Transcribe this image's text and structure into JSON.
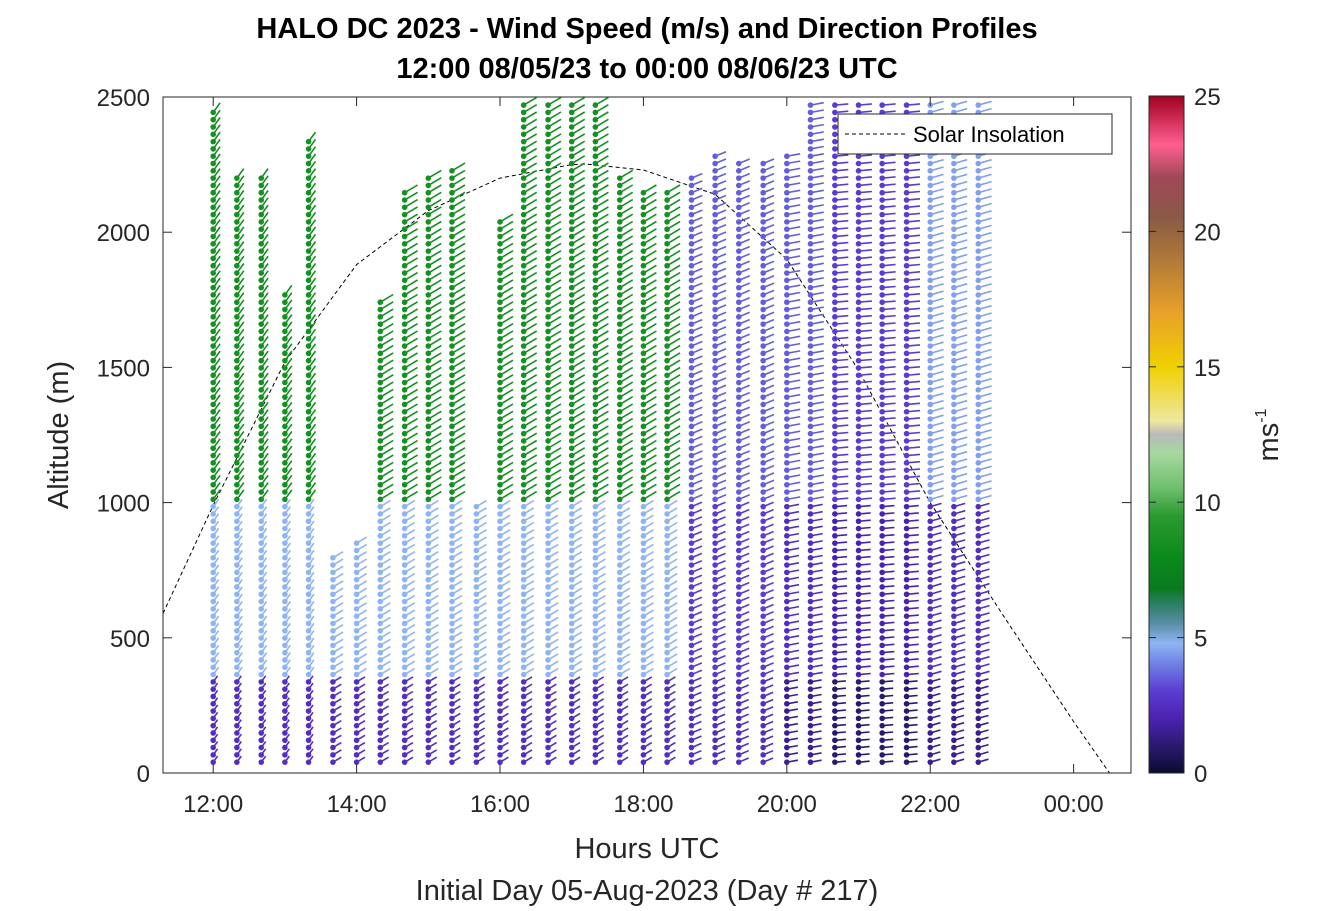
{
  "chart_data": {
    "type": "scatter",
    "title": "HALO DC 2023 - Wind Speed (m/s) and Direction Profiles",
    "subtitle": "12:00 08/05/23 to 00:00 08/06/23  UTC",
    "xlabel": "Hours UTC",
    "xlabel_sub": "Initial Day 05-Aug-2023 (Day # 217)",
    "ylabel": "Altitude (m)",
    "xlim": [
      11.3,
      24.8
    ],
    "ylim": [
      0,
      2500
    ],
    "xticks": [
      12,
      14,
      16,
      18,
      20,
      22,
      24
    ],
    "xtick_labels": [
      "12:00",
      "14:00",
      "16:00",
      "18:00",
      "20:00",
      "22:00",
      "00:00"
    ],
    "yticks": [
      0,
      500,
      1000,
      1500,
      2000,
      2500
    ],
    "ytick_labels": [
      "0",
      "500",
      "1000",
      "1500",
      "2000",
      "2500"
    ],
    "colorbar": {
      "label": "ms",
      "label_exponent": "-1",
      "range": [
        0,
        25
      ],
      "ticks": [
        0,
        5,
        10,
        15,
        20,
        25
      ],
      "tick_labels": [
        "0",
        "5",
        "10",
        "15",
        "20",
        "25"
      ],
      "stops": [
        [
          0,
          "#0b0b2e"
        ],
        [
          1,
          "#2a1a6e"
        ],
        [
          2,
          "#4b22b0"
        ],
        [
          3,
          "#5a3cd0"
        ],
        [
          4,
          "#6f7fe6"
        ],
        [
          4.8,
          "#8fb4f2"
        ],
        [
          5.5,
          "#5a8fa8"
        ],
        [
          6.2,
          "#2f7f6a"
        ],
        [
          6.8,
          "#0a7a20"
        ],
        [
          8,
          "#0b8a1c"
        ],
        [
          9.5,
          "#2b9a30"
        ],
        [
          10.5,
          "#6cbf6c"
        ],
        [
          11.8,
          "#a6d8a0"
        ],
        [
          12.5,
          "#b9b9b9"
        ],
        [
          13,
          "#eee8a0"
        ],
        [
          15,
          "#f0d000"
        ],
        [
          17,
          "#e8a12a"
        ],
        [
          19,
          "#b07838"
        ],
        [
          20.5,
          "#8a5a46"
        ],
        [
          22,
          "#a04858"
        ],
        [
          23.2,
          "#ff5f8f"
        ],
        [
          25,
          "#a00020"
        ]
      ]
    },
    "legend": {
      "label": "Solar Insolation",
      "position": "top-right"
    },
    "solar_insolation": {
      "x": [
        11.3,
        12.0,
        13.0,
        14.0,
        15.0,
        16.0,
        17.0,
        17.2,
        18.0,
        19.0,
        20.0,
        21.0,
        22.0,
        23.0,
        24.0,
        24.5
      ],
      "y": [
        590,
        990,
        1520,
        1880,
        2080,
        2200,
        2250,
        2252,
        2230,
        2140,
        1900,
        1490,
        1000,
        590,
        190,
        0
      ]
    },
    "profiles": [
      {
        "time": 12.0,
        "alt_max": 2450,
        "speed_low": 2.5,
        "speed_mid": 4.8,
        "speed_high": 8.5,
        "dir": 200
      },
      {
        "time": 12.33,
        "alt_max": 2200,
        "speed_low": 2.5,
        "speed_mid": 4.8,
        "speed_high": 8.5,
        "dir": 200
      },
      {
        "time": 12.67,
        "alt_max": 2200,
        "speed_low": 2.5,
        "speed_mid": 4.8,
        "speed_high": 8.5,
        "dir": 200
      },
      {
        "time": 13.0,
        "alt_max": 1780,
        "speed_low": 2.5,
        "speed_mid": 4.8,
        "speed_high": 8.5,
        "dir": 200
      },
      {
        "time": 13.33,
        "alt_max": 2350,
        "speed_low": 2.5,
        "speed_mid": 4.8,
        "speed_high": 8.5,
        "dir": 200
      },
      {
        "time": 13.67,
        "alt_max": 800,
        "speed_low": 2.5,
        "speed_mid": 4.8,
        "speed_high": 8.5,
        "dir": 220
      },
      {
        "time": 14.0,
        "alt_max": 850,
        "speed_low": 2.5,
        "speed_mid": 4.8,
        "speed_high": 8.5,
        "dir": 220
      },
      {
        "time": 14.33,
        "alt_max": 1750,
        "speed_low": 2.5,
        "speed_mid": 4.8,
        "speed_high": 8.5,
        "dir": 220
      },
      {
        "time": 14.67,
        "alt_max": 2150,
        "speed_low": 2.5,
        "speed_mid": 4.8,
        "speed_high": 8.5,
        "dir": 220
      },
      {
        "time": 15.0,
        "alt_max": 2200,
        "speed_low": 2.5,
        "speed_mid": 4.8,
        "speed_high": 8.5,
        "dir": 220
      },
      {
        "time": 15.33,
        "alt_max": 2250,
        "speed_low": 2.5,
        "speed_mid": 4.8,
        "speed_high": 8.5,
        "dir": 220
      },
      {
        "time": 15.67,
        "alt_max": 1000,
        "speed_low": 2.5,
        "speed_mid": 4.8,
        "speed_high": 8.5,
        "dir": 220
      },
      {
        "time": 16.0,
        "alt_max": 2050,
        "speed_low": 2.5,
        "speed_mid": 4.8,
        "speed_high": 8.5,
        "dir": 220
      },
      {
        "time": 16.33,
        "alt_max": 2480,
        "speed_low": 2.5,
        "speed_mid": 4.8,
        "speed_high": 8.5,
        "dir": 220
      },
      {
        "time": 16.67,
        "alt_max": 2480,
        "speed_low": 2.5,
        "speed_mid": 4.8,
        "speed_high": 8.5,
        "dir": 220
      },
      {
        "time": 17.0,
        "alt_max": 2480,
        "speed_low": 2.5,
        "speed_mid": 4.8,
        "speed_high": 8.5,
        "dir": 220
      },
      {
        "time": 17.33,
        "alt_max": 2480,
        "speed_low": 2.5,
        "speed_mid": 4.8,
        "speed_high": 8.5,
        "dir": 220
      },
      {
        "time": 17.67,
        "alt_max": 2200,
        "speed_low": 2.5,
        "speed_mid": 4.8,
        "speed_high": 8.5,
        "dir": 220
      },
      {
        "time": 18.0,
        "alt_max": 2150,
        "speed_low": 2.5,
        "speed_mid": 4.8,
        "speed_high": 8.5,
        "dir": 220
      },
      {
        "time": 18.33,
        "alt_max": 2150,
        "speed_low": 2.5,
        "speed_mid": 4.8,
        "speed_high": 8.5,
        "dir": 220
      },
      {
        "time": 18.67,
        "alt_max": 2200,
        "speed_low": 2.5,
        "speed_mid": 3.0,
        "speed_high": 3.5,
        "dir": 230
      },
      {
        "time": 19.0,
        "alt_max": 2300,
        "speed_low": 2.5,
        "speed_mid": 3.0,
        "speed_high": 3.5,
        "dir": 230
      },
      {
        "time": 19.33,
        "alt_max": 2280,
        "speed_low": 2.5,
        "speed_mid": 3.0,
        "speed_high": 3.5,
        "dir": 230
      },
      {
        "time": 19.67,
        "alt_max": 2280,
        "speed_low": 2.5,
        "speed_mid": 3.0,
        "speed_high": 3.5,
        "dir": 230
      },
      {
        "time": 20.0,
        "alt_max": 2300,
        "speed_low": 1.5,
        "speed_mid": 2.5,
        "speed_high": 3.5,
        "dir": 250
      },
      {
        "time": 20.33,
        "alt_max": 2480,
        "speed_low": 1.5,
        "speed_mid": 2.5,
        "speed_high": 3.5,
        "dir": 250
      },
      {
        "time": 20.67,
        "alt_max": 2480,
        "speed_low": 1.0,
        "speed_mid": 2.0,
        "speed_high": 3.0,
        "dir": 260
      },
      {
        "time": 21.0,
        "alt_max": 2480,
        "speed_low": 1.0,
        "speed_mid": 2.0,
        "speed_high": 3.0,
        "dir": 260
      },
      {
        "time": 21.33,
        "alt_max": 2480,
        "speed_low": 1.0,
        "speed_mid": 2.0,
        "speed_high": 3.0,
        "dir": 260
      },
      {
        "time": 21.67,
        "alt_max": 2480,
        "speed_low": 1.0,
        "speed_mid": 2.0,
        "speed_high": 3.0,
        "dir": 260
      },
      {
        "time": 22.0,
        "alt_max": 2480,
        "speed_low": 1.5,
        "speed_mid": 2.5,
        "speed_high": 4.5,
        "dir": 240
      },
      {
        "time": 22.33,
        "alt_max": 2480,
        "speed_low": 1.5,
        "speed_mid": 2.5,
        "speed_high": 4.5,
        "dir": 240
      },
      {
        "time": 22.67,
        "alt_max": 2480,
        "speed_low": 1.5,
        "speed_mid": 2.5,
        "speed_high": 4.5,
        "dir": 240
      }
    ]
  }
}
